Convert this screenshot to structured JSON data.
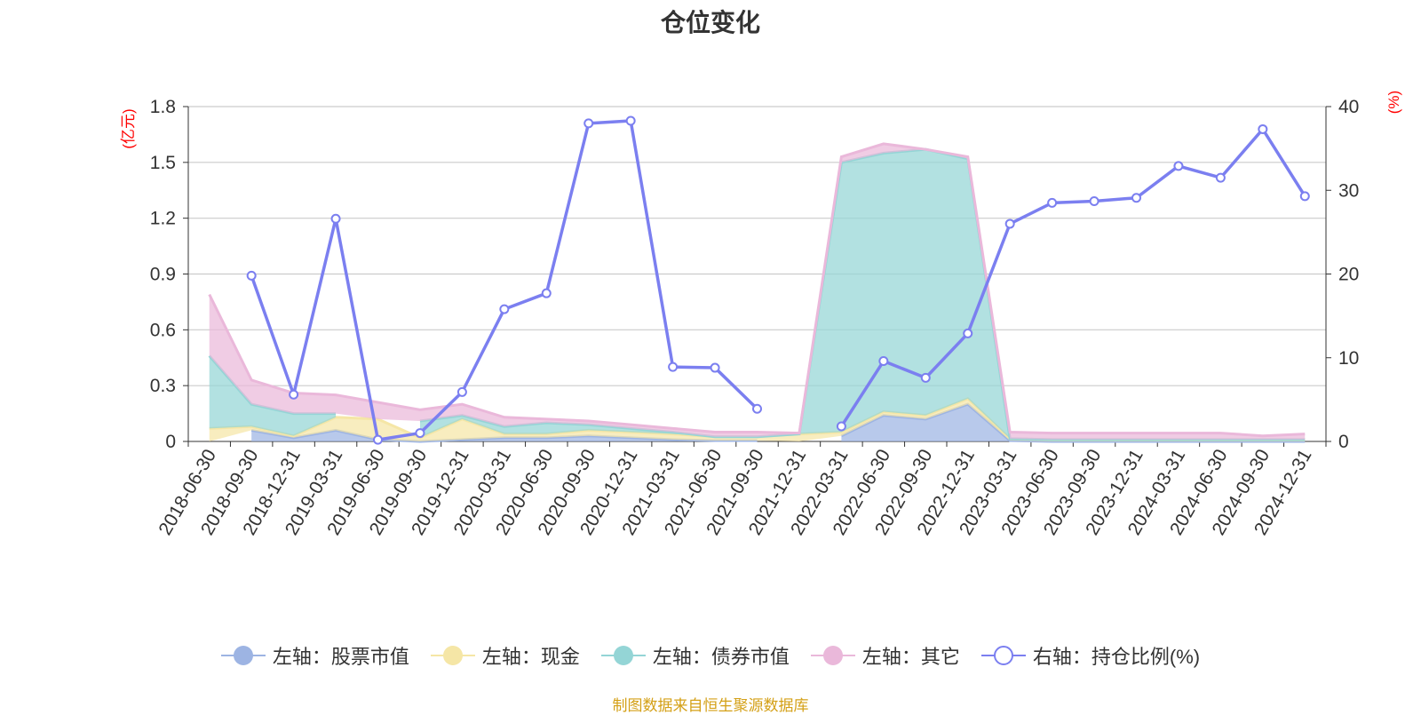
{
  "title": "仓位变化",
  "footer": "制图数据来自恒生聚源数据库",
  "legend": [
    {
      "label": "左轴：股票市值",
      "color": "#9db4e3",
      "icon": "filled-circle-icon"
    },
    {
      "label": "左轴：现金",
      "color": "#f5e6a6",
      "icon": "filled-circle-icon"
    },
    {
      "label": "左轴：债券市值",
      "color": "#94d5d6",
      "icon": "filled-circle-icon"
    },
    {
      "label": "左轴：其它",
      "color": "#eab8da",
      "icon": "filled-circle-icon"
    },
    {
      "label": "右轴：持仓比例(%)",
      "color": "#7b7ff0",
      "icon": "hollow-circle-icon"
    }
  ],
  "chart_data": {
    "type": "area",
    "title": "仓位变化",
    "categories": [
      "2018-06-30",
      "2018-09-30",
      "2018-12-31",
      "2019-03-31",
      "2019-06-30",
      "2019-09-30",
      "2019-12-31",
      "2020-03-31",
      "2020-06-30",
      "2020-09-30",
      "2020-12-31",
      "2021-03-31",
      "2021-06-30",
      "2021-09-30",
      "2021-12-31",
      "2022-03-31",
      "2022-06-30",
      "2022-09-30",
      "2022-12-31",
      "2023-03-31",
      "2023-06-30",
      "2023-09-30",
      "2023-12-31",
      "2024-03-31",
      "2024-06-30",
      "2024-09-30",
      "2024-12-31"
    ],
    "left_axis": {
      "unit": "(亿元)",
      "ylim": [
        0,
        1.8
      ],
      "ticks": [
        "0",
        "0.3",
        "0.6",
        "0.9",
        "1.2",
        "1.5",
        "1.8"
      ]
    },
    "right_axis": {
      "unit": "(%)",
      "ylim": [
        0,
        40
      ],
      "ticks": [
        "0",
        "10",
        "20",
        "30",
        "40"
      ]
    },
    "grid": true,
    "legend_position": "bottom",
    "series": [
      {
        "name": "左轴：股票市值",
        "axis": "left",
        "stacked": true,
        "color": "#9db4e3",
        "values": [
          null,
          0.06,
          0.02,
          0.06,
          0.01,
          0.0,
          0.01,
          0.02,
          0.02,
          0.03,
          0.02,
          0.01,
          0.005,
          0.005,
          null,
          0.03,
          0.14,
          0.12,
          0.2,
          0.005,
          0.0,
          0.0,
          0.0,
          0.0,
          0.0,
          0.0,
          0.0
        ]
      },
      {
        "name": "左轴：现金",
        "axis": "left",
        "stacked": true,
        "color": "#f5e6a6",
        "values": [
          0.07,
          0.02,
          0.01,
          0.07,
          0.11,
          0.02,
          0.11,
          0.02,
          0.02,
          0.03,
          0.03,
          0.03,
          0.02,
          0.02,
          0.04,
          0.02,
          0.02,
          0.02,
          0.03,
          0.01,
          0.01,
          0.01,
          0.01,
          0.01,
          0.01,
          0.01,
          0.01
        ]
      },
      {
        "name": "左轴：债券市值",
        "axis": "left",
        "stacked": true,
        "color": "#94d5d6",
        "values": [
          0.39,
          0.12,
          0.12,
          0.02,
          null,
          0.09,
          0.02,
          0.04,
          0.06,
          0.03,
          0.02,
          0.01,
          0.0,
          0.0,
          0.0,
          1.45,
          1.39,
          1.43,
          1.29,
          0.0,
          0.0,
          0.0,
          0.0,
          0.0,
          0.0,
          0.0,
          0.0
        ]
      },
      {
        "name": "左轴：其它",
        "axis": "left",
        "stacked": true,
        "color": "#eab8da",
        "values": [
          0.33,
          0.13,
          0.11,
          0.1,
          0.09,
          0.06,
          0.06,
          0.05,
          0.02,
          0.02,
          0.02,
          0.02,
          0.025,
          0.025,
          0.005,
          0.03,
          0.05,
          0.0,
          0.01,
          0.035,
          0.035,
          0.035,
          0.035,
          0.035,
          0.035,
          0.02,
          0.03
        ]
      },
      {
        "name": "右轴：持仓比例(%)",
        "axis": "right",
        "type": "line",
        "color": "#7b7ff0",
        "values": [
          null,
          19.8,
          5.6,
          26.6,
          0.2,
          1.0,
          5.9,
          15.8,
          17.7,
          38.0,
          38.3,
          8.9,
          8.8,
          3.9,
          null,
          1.8,
          9.6,
          7.6,
          12.9,
          26.0,
          28.5,
          28.7,
          29.1,
          32.9,
          31.5,
          37.3,
          29.3
        ]
      }
    ]
  }
}
